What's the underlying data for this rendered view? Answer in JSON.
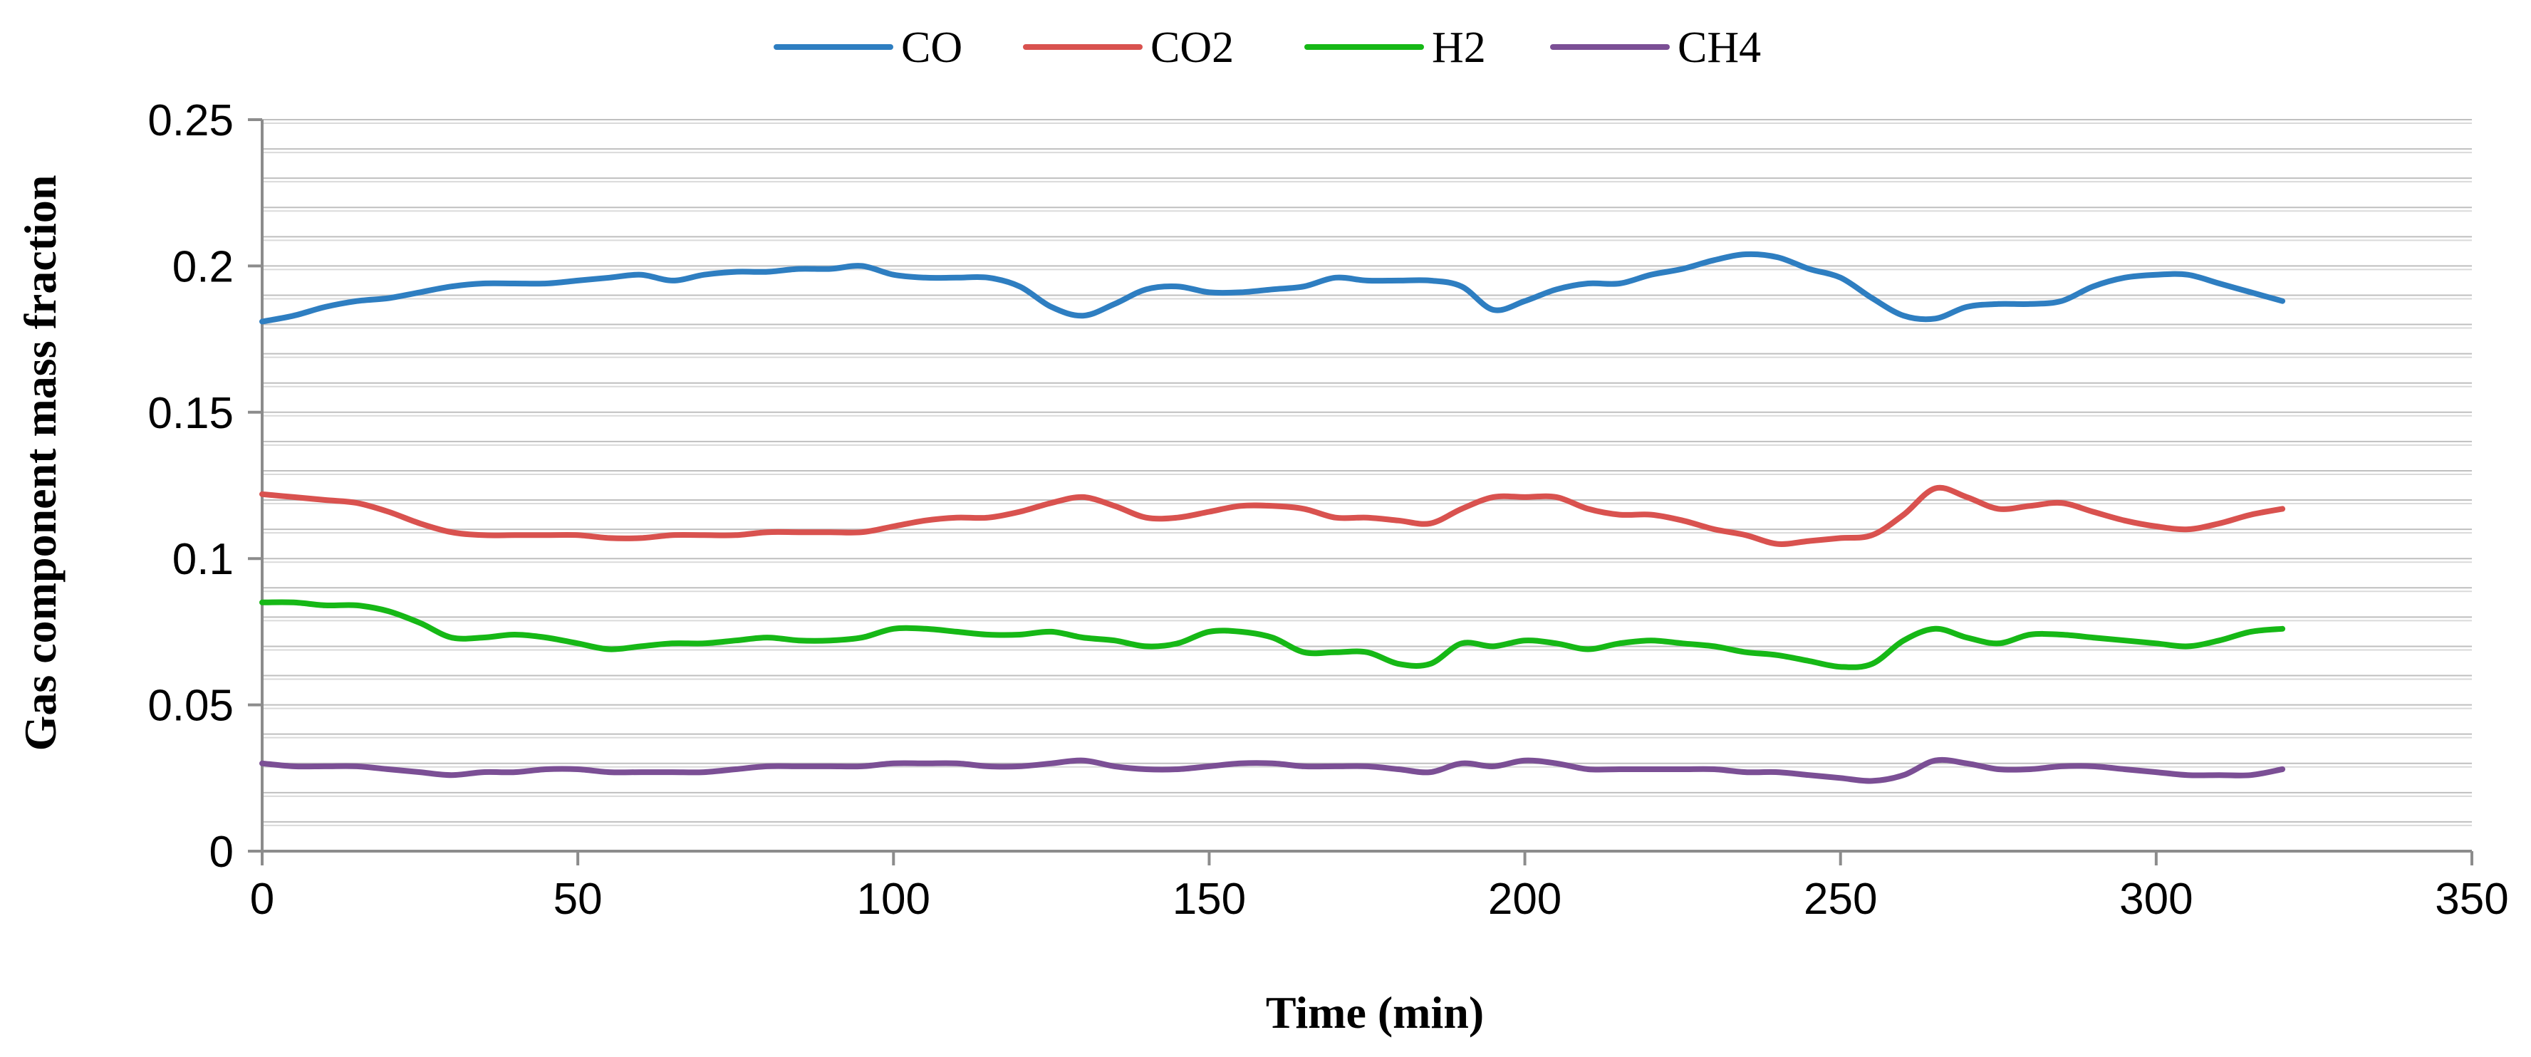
{
  "chart_data": {
    "type": "line",
    "title": "",
    "xlabel": "Time (min)",
    "ylabel": "Gas component mass fraction",
    "xlim": [
      0,
      350
    ],
    "ylim": [
      0,
      0.25
    ],
    "x_ticks": [
      0,
      50,
      100,
      150,
      200,
      250,
      300,
      350
    ],
    "x_tick_labels": [
      "0",
      "50",
      "100",
      "150",
      "200",
      "250",
      "300",
      "350"
    ],
    "y_ticks": [
      0,
      0.05,
      0.1,
      0.15,
      0.2,
      0.25
    ],
    "y_tick_labels": [
      "0",
      "0.05",
      "0.1",
      "0.15",
      "0.2",
      "0.25"
    ],
    "grid": true,
    "minor_grid_step": 0.01,
    "legend_position": "top-center",
    "x": [
      0,
      5,
      10,
      15,
      20,
      25,
      30,
      35,
      40,
      45,
      50,
      55,
      60,
      65,
      70,
      75,
      80,
      85,
      90,
      95,
      100,
      105,
      110,
      115,
      120,
      125,
      130,
      135,
      140,
      145,
      150,
      155,
      160,
      165,
      170,
      175,
      180,
      185,
      190,
      195,
      200,
      205,
      210,
      215,
      220,
      225,
      230,
      235,
      240,
      245,
      250,
      255,
      260,
      265,
      270,
      275,
      280,
      285,
      290,
      295,
      300,
      305,
      310,
      315,
      320
    ],
    "series": [
      {
        "name": "CO",
        "color": "#2E7EC1",
        "values": [
          0.181,
          0.183,
          0.186,
          0.188,
          0.189,
          0.191,
          0.193,
          0.194,
          0.194,
          0.194,
          0.195,
          0.196,
          0.197,
          0.195,
          0.197,
          0.198,
          0.198,
          0.199,
          0.199,
          0.2,
          0.197,
          0.196,
          0.196,
          0.196,
          0.193,
          0.186,
          0.183,
          0.187,
          0.192,
          0.193,
          0.191,
          0.191,
          0.192,
          0.193,
          0.196,
          0.195,
          0.195,
          0.195,
          0.193,
          0.185,
          0.188,
          0.192,
          0.194,
          0.194,
          0.197,
          0.199,
          0.202,
          0.204,
          0.203,
          0.199,
          0.196,
          0.189,
          0.183,
          0.182,
          0.186,
          0.187,
          0.187,
          0.188,
          0.193,
          0.196,
          0.197,
          0.197,
          0.194,
          0.191,
          0.188
        ]
      },
      {
        "name": "CO2",
        "color": "#D9524F",
        "values": [
          0.122,
          0.121,
          0.12,
          0.119,
          0.116,
          0.112,
          0.109,
          0.108,
          0.108,
          0.108,
          0.108,
          0.107,
          0.107,
          0.108,
          0.108,
          0.108,
          0.109,
          0.109,
          0.109,
          0.109,
          0.111,
          0.113,
          0.114,
          0.114,
          0.116,
          0.119,
          0.121,
          0.118,
          0.114,
          0.114,
          0.116,
          0.118,
          0.118,
          0.117,
          0.114,
          0.114,
          0.113,
          0.112,
          0.117,
          0.121,
          0.121,
          0.121,
          0.117,
          0.115,
          0.115,
          0.113,
          0.11,
          0.108,
          0.105,
          0.106,
          0.107,
          0.108,
          0.115,
          0.124,
          0.121,
          0.117,
          0.118,
          0.119,
          0.116,
          0.113,
          0.111,
          0.11,
          0.112,
          0.115,
          0.117
        ]
      },
      {
        "name": "H2",
        "color": "#16B816",
        "values": [
          0.085,
          0.085,
          0.084,
          0.084,
          0.082,
          0.078,
          0.073,
          0.073,
          0.074,
          0.073,
          0.071,
          0.069,
          0.07,
          0.071,
          0.071,
          0.072,
          0.073,
          0.072,
          0.072,
          0.073,
          0.076,
          0.076,
          0.075,
          0.074,
          0.074,
          0.075,
          0.073,
          0.072,
          0.07,
          0.071,
          0.075,
          0.075,
          0.073,
          0.068,
          0.068,
          0.068,
          0.064,
          0.064,
          0.071,
          0.07,
          0.072,
          0.071,
          0.069,
          0.071,
          0.072,
          0.071,
          0.07,
          0.068,
          0.067,
          0.065,
          0.063,
          0.064,
          0.072,
          0.076,
          0.073,
          0.071,
          0.074,
          0.074,
          0.073,
          0.072,
          0.071,
          0.07,
          0.072,
          0.075,
          0.076
        ]
      },
      {
        "name": "CH4",
        "color": "#7B4F95",
        "values": [
          0.03,
          0.029,
          0.029,
          0.029,
          0.028,
          0.027,
          0.026,
          0.027,
          0.027,
          0.028,
          0.028,
          0.027,
          0.027,
          0.027,
          0.027,
          0.028,
          0.029,
          0.029,
          0.029,
          0.029,
          0.03,
          0.03,
          0.03,
          0.029,
          0.029,
          0.03,
          0.031,
          0.029,
          0.028,
          0.028,
          0.029,
          0.03,
          0.03,
          0.029,
          0.029,
          0.029,
          0.028,
          0.027,
          0.03,
          0.029,
          0.031,
          0.03,
          0.028,
          0.028,
          0.028,
          0.028,
          0.028,
          0.027,
          0.027,
          0.026,
          0.025,
          0.024,
          0.026,
          0.031,
          0.03,
          0.028,
          0.028,
          0.029,
          0.029,
          0.028,
          0.027,
          0.026,
          0.026,
          0.026,
          0.028
        ]
      }
    ]
  }
}
